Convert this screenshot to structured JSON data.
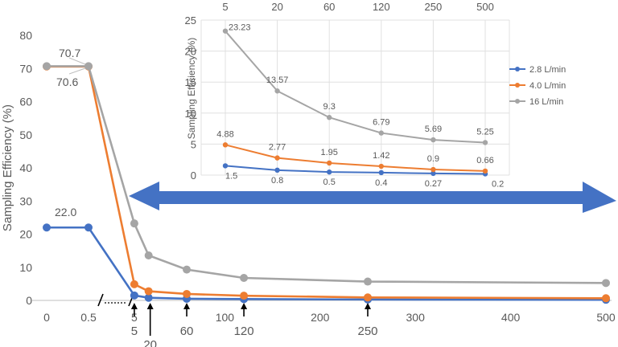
{
  "chart_data": [
    {
      "type": "line",
      "role": "main",
      "ylabel": "Sampling Efficiency (%)",
      "ylim": [
        0,
        80
      ],
      "y_ticks": [
        "0",
        "10",
        "20",
        "30",
        "40",
        "50",
        "60",
        "70",
        "80"
      ],
      "x_ticks": [
        {
          "label": "0",
          "x": 0
        },
        {
          "label": "0.5",
          "x": 0.5
        },
        {
          "label": "5",
          "x": 5
        },
        {
          "label": "100",
          "x": 100
        },
        {
          "label": "200",
          "x": 200
        },
        {
          "label": "300",
          "x": 300
        },
        {
          "label": "400",
          "x": 400
        },
        {
          "label": "500",
          "x": 500
        }
      ],
      "axis_break": "/ ……… /",
      "x": [
        0,
        0.5,
        5,
        20,
        60,
        120,
        250,
        500
      ],
      "series": [
        {
          "values": [
            22.0,
            22.0,
            1.5,
            0.8,
            0.5,
            0.4,
            0.27,
            0.2
          ],
          "color": "#4472c4"
        },
        {
          "values": [
            70.6,
            70.6,
            4.88,
            2.77,
            1.95,
            1.42,
            0.9,
            0.66
          ],
          "color": "#ed7d31"
        },
        {
          "values": [
            70.7,
            70.7,
            23.23,
            13.57,
            9.3,
            6.79,
            5.69,
            5.25
          ],
          "color": "#a5a5a5"
        }
      ],
      "labels": [
        {
          "text": "70.7",
          "x": 0.5,
          "y": 70.7
        },
        {
          "text": "70.6",
          "x": 0.5,
          "y": 70.6
        },
        {
          "text": "22.0",
          "x": 0.25,
          "y": 22.0
        }
      ],
      "arrow_marks": [
        {
          "label": "5",
          "x": 5
        },
        {
          "label": "20",
          "x": 20
        },
        {
          "label": "60",
          "x": 60
        },
        {
          "label": "120",
          "x": 120
        },
        {
          "label": "250",
          "x": 250
        }
      ],
      "grid": false
    },
    {
      "type": "line",
      "role": "inset",
      "ylabel": "Sampling Efficiency (%)",
      "ylim": [
        0,
        25
      ],
      "y_ticks": [
        "0",
        "5",
        "10",
        "15",
        "20",
        "25"
      ],
      "categories": [
        "5",
        "20",
        "60",
        "120",
        "250",
        "500"
      ],
      "series": [
        {
          "name": "2.8 L/min",
          "values": [
            1.5,
            0.8,
            0.5,
            0.4,
            0.27,
            0.2
          ],
          "labels": [
            "1.5",
            "0.8",
            "0.5",
            "0.4",
            "0.27",
            "0.2"
          ],
          "color": "#4472c4"
        },
        {
          "name": "4.0 L/min",
          "values": [
            4.88,
            2.77,
            1.95,
            1.42,
            0.9,
            0.66
          ],
          "labels": [
            "4.88",
            "2.77",
            "1.95",
            "1.42",
            "0.9",
            "0.66"
          ],
          "color": "#ed7d31"
        },
        {
          "name": "16 L/min",
          "values": [
            23.23,
            13.57,
            9.3,
            6.79,
            5.69,
            5.25
          ],
          "labels": [
            "23.23",
            "13.57",
            "9.3",
            "6.79",
            "5.69",
            "5.25"
          ],
          "color": "#a5a5a5"
        }
      ],
      "grid": true,
      "legend_position": "right",
      "x_axis_position": "top"
    }
  ],
  "colors": {
    "arrow": "#4472c4",
    "axis": "#bfbfbf",
    "grid": "#e0e0e0",
    "text": "#595959"
  }
}
